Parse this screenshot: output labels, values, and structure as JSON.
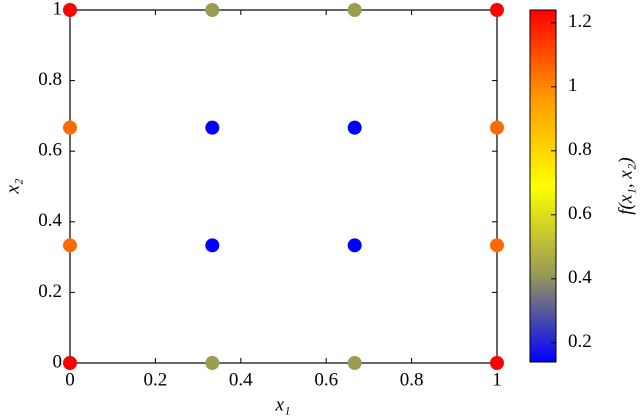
{
  "chart_data": {
    "type": "scatter",
    "xlabel": "x₁",
    "ylabel": "x₂",
    "colorbar_label": "f(x₁, x₂)",
    "x": [
      0,
      0.3333,
      0.6667,
      1,
      0,
      0.3333,
      0.6667,
      1,
      0,
      0.3333,
      0.6667,
      1,
      0,
      0.3333,
      0.6667,
      1
    ],
    "y": [
      0,
      0,
      0,
      0,
      0.3333,
      0.3333,
      0.3333,
      0.3333,
      0.6667,
      0.6667,
      0.6667,
      0.6667,
      1,
      1,
      1,
      1
    ],
    "c": [
      1.24,
      0.42,
      0.42,
      1.24,
      1.05,
      0.14,
      0.14,
      1.05,
      1.05,
      0.14,
      0.14,
      1.05,
      1.24,
      0.42,
      0.42,
      1.24
    ],
    "xlim": [
      0,
      1
    ],
    "ylim": [
      0,
      1
    ],
    "xticks": [
      0,
      0.2,
      0.4,
      0.6,
      0.8,
      1
    ],
    "yticks": [
      0,
      0.2,
      0.4,
      0.6,
      0.8,
      1
    ],
    "clim": [
      0.14,
      1.24
    ],
    "cticks": [
      0.2,
      0.4,
      0.6,
      0.8,
      1,
      1.2
    ],
    "colormap": [
      "#0000ff",
      "#9a9a55",
      "#ffff00",
      "#ff9a00",
      "#ff0000"
    ]
  }
}
